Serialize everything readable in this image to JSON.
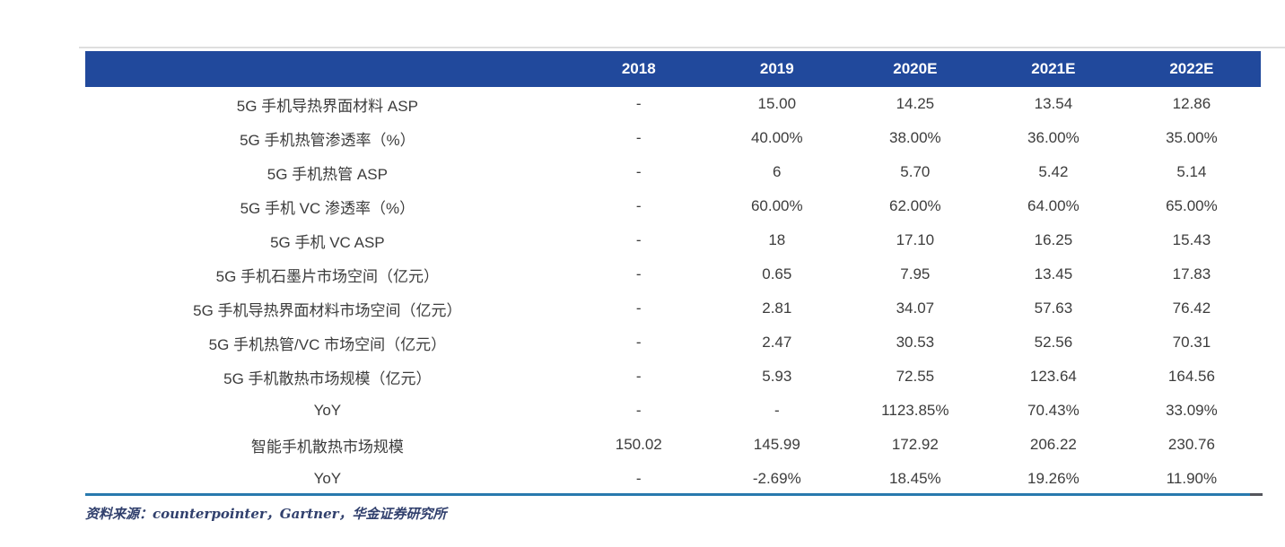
{
  "table": {
    "columns": [
      "",
      "2018",
      "2019",
      "2020E",
      "2021E",
      "2022E"
    ],
    "rows": [
      {
        "label": "5G 手机导热界面材料 ASP",
        "values": [
          "-",
          "15.00",
          "14.25",
          "13.54",
          "12.86"
        ]
      },
      {
        "label": "5G 手机热管渗透率（%）",
        "values": [
          "-",
          "40.00%",
          "38.00%",
          "36.00%",
          "35.00%"
        ]
      },
      {
        "label": "5G 手机热管 ASP",
        "values": [
          "-",
          "6",
          "5.70",
          "5.42",
          "5.14"
        ]
      },
      {
        "label": "5G 手机 VC 渗透率（%）",
        "values": [
          "-",
          "60.00%",
          "62.00%",
          "64.00%",
          "65.00%"
        ]
      },
      {
        "label": "5G 手机 VC ASP",
        "values": [
          "-",
          "18",
          "17.10",
          "16.25",
          "15.43"
        ]
      },
      {
        "label": "5G 手机石墨片市场空间（亿元）",
        "values": [
          "-",
          "0.65",
          "7.95",
          "13.45",
          "17.83"
        ]
      },
      {
        "label": "5G 手机导热界面材料市场空间（亿元）",
        "values": [
          "-",
          "2.81",
          "34.07",
          "57.63",
          "76.42"
        ]
      },
      {
        "label": "5G 手机热管/VC 市场空间（亿元）",
        "values": [
          "-",
          "2.47",
          "30.53",
          "52.56",
          "70.31"
        ]
      },
      {
        "label": "5G 手机散热市场规模（亿元）",
        "values": [
          "-",
          "5.93",
          "72.55",
          "123.64",
          "164.56"
        ]
      },
      {
        "label": "YoY",
        "values": [
          "-",
          "-",
          "1123.85%",
          "70.43%",
          "33.09%"
        ]
      },
      {
        "label": "智能手机散热市场规模",
        "values": [
          "150.02",
          "145.99",
          "172.92",
          "206.22",
          "230.76"
        ]
      },
      {
        "label": "YoY",
        "values": [
          "-",
          "-2.69%",
          "18.45%",
          "19.26%",
          "11.90%"
        ]
      }
    ]
  },
  "source": {
    "text": "资料来源：counterpointer，Gartner，华金证券研究所"
  },
  "colors": {
    "header_background": "#21499c",
    "header_text": "#ffffff",
    "body_text": "#3c3c3c",
    "bottom_rule": "#2879ae",
    "bottom_rule_tip": "#54555c",
    "top_rule": "#dedede",
    "source_text": "#31406d"
  }
}
